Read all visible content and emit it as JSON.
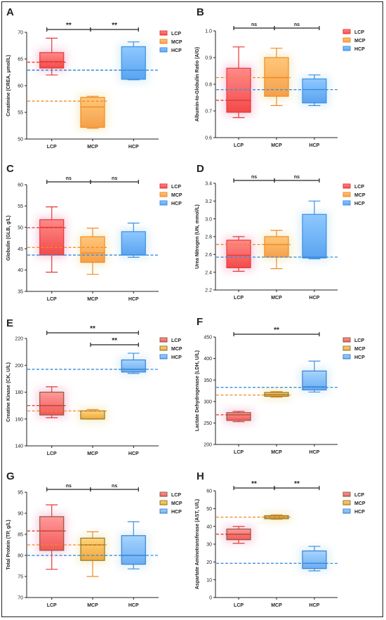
{
  "colors": {
    "LCP_top": "#ff8a8a",
    "LCP_bot": "#f24a4a",
    "LCP_line": "#e53935",
    "LCP_glow": "#f7c8dc",
    "MCP_top": "#ffc77a",
    "MCP_bot": "#f5a04a",
    "MCP_line": "#f08a24",
    "MCP_glow": "#f5ecc6",
    "HCP_top": "#8ec8ff",
    "HCP_bot": "#5aa4f0",
    "HCP_line": "#3d8fe0",
    "HCP_glow": "#d8ecf6",
    "ink": "#222222"
  },
  "categories": [
    "LCP",
    "MCP",
    "HCP"
  ],
  "legend": [
    "LCP",
    "MCP",
    "HCP"
  ],
  "chart_data": [
    {
      "panel": "A",
      "type": "box",
      "ylabel": "Creatinine (CREA, μmol/L)",
      "ylim": [
        50,
        70
      ],
      "yticks": [
        50,
        55,
        60,
        65,
        70
      ],
      "tick_labels": [
        "50",
        "55",
        "60",
        "65",
        "70"
      ],
      "boxes": [
        {
          "group": "LCP",
          "min": 62.0,
          "q1": 63.3,
          "median": 64.5,
          "q3": 66.2,
          "max": 68.9
        },
        {
          "group": "MCP",
          "min": 52.0,
          "q1": 52.2,
          "median": 56.0,
          "q3": 57.8,
          "max": 58.0
        },
        {
          "group": "HCP",
          "min": 61.1,
          "q1": 61.2,
          "median": 62.9,
          "q3": 67.3,
          "max": 68.2
        }
      ],
      "means": [
        64.4,
        57.1,
        62.9
      ],
      "comparisons": [
        {
          "from": 0,
          "to": 1,
          "label": "**"
        },
        {
          "from": 1,
          "to": 2,
          "label": "**"
        }
      ]
    },
    {
      "panel": "B",
      "type": "box",
      "ylabel": "Albumin-to-Globulin Ratio (A/G)",
      "ylim": [
        0.6,
        1.0
      ],
      "yticks": [
        0.6,
        0.7,
        0.8,
        0.9,
        1.0
      ],
      "tick_labels": [
        "0.6",
        "0.7",
        "0.8",
        "0.9",
        "1.0"
      ],
      "boxes": [
        {
          "group": "LCP",
          "min": 0.675,
          "q1": 0.695,
          "median": 0.74,
          "q3": 0.86,
          "max": 0.94
        },
        {
          "group": "MCP",
          "min": 0.72,
          "q1": 0.755,
          "median": 0.825,
          "q3": 0.9,
          "max": 0.935
        },
        {
          "group": "HCP",
          "min": 0.72,
          "q1": 0.73,
          "median": 0.78,
          "q3": 0.82,
          "max": 0.835
        }
      ],
      "means": [
        0.74,
        0.825,
        0.78
      ],
      "comparisons": [
        {
          "from": 0,
          "to": 1,
          "label": "ns"
        },
        {
          "from": 1,
          "to": 2,
          "label": "ns"
        }
      ]
    },
    {
      "panel": "C",
      "type": "box",
      "ylabel": "Globulin (GLB, g/L)",
      "ylim": [
        35,
        60
      ],
      "yticks": [
        35,
        40,
        45,
        50,
        55,
        60
      ],
      "tick_labels": [
        "35",
        "40",
        "45",
        "50",
        "55",
        "60"
      ],
      "boxes": [
        {
          "group": "LCP",
          "min": 39.5,
          "q1": 43.5,
          "median": 50.0,
          "q3": 51.8,
          "max": 54.8
        },
        {
          "group": "MCP",
          "min": 39.0,
          "q1": 41.8,
          "median": 44.0,
          "q3": 47.8,
          "max": 49.8
        },
        {
          "group": "HCP",
          "min": 43.0,
          "q1": 43.5,
          "median": 43.5,
          "q3": 49.0,
          "max": 51.0
        }
      ],
      "means": [
        49.9,
        45.3,
        43.5
      ],
      "comparisons": [
        {
          "from": 0,
          "to": 1,
          "label": "ns"
        },
        {
          "from": 1,
          "to": 2,
          "label": "ns"
        }
      ]
    },
    {
      "panel": "D",
      "type": "box",
      "ylabel": "Urea Nitrogen (UN, mmol/L)",
      "ylim": [
        2.2,
        3.4
      ],
      "yticks": [
        2.2,
        2.4,
        2.6,
        2.8,
        3.0,
        3.2,
        3.4
      ],
      "tick_labels": [
        "2.2",
        "2.4",
        "2.6",
        "2.8",
        "3.0",
        "3.2",
        "3.4"
      ],
      "boxes": [
        {
          "group": "LCP",
          "min": 2.41,
          "q1": 2.45,
          "median": 2.59,
          "q3": 2.76,
          "max": 2.8
        },
        {
          "group": "MCP",
          "min": 2.44,
          "q1": 2.57,
          "median": 2.71,
          "q3": 2.8,
          "max": 2.87
        },
        {
          "group": "HCP",
          "min": 2.55,
          "q1": 2.56,
          "median": 2.57,
          "q3": 3.05,
          "max": 3.2
        }
      ],
      "means": [
        2.71,
        2.71,
        2.57
      ],
      "comparisons": [
        {
          "from": 0,
          "to": 1,
          "label": "ns"
        },
        {
          "from": 1,
          "to": 2,
          "label": "ns"
        }
      ]
    },
    {
      "panel": "E",
      "type": "box",
      "ylabel": "Creatine Kinase (CK, U/L)",
      "ylim": [
        140,
        220
      ],
      "yticks": [
        140,
        160,
        180,
        200,
        220
      ],
      "tick_labels": [
        "140",
        "160",
        "180",
        "200",
        "220"
      ],
      "boxes": [
        {
          "group": "LCP",
          "min": 161,
          "q1": 163,
          "median": 170,
          "q3": 180,
          "max": 184
        },
        {
          "group": "MCP",
          "min": 160,
          "q1": 160,
          "median": 166,
          "q3": 166,
          "max": 167
        },
        {
          "group": "HCP",
          "min": 194,
          "q1": 195,
          "median": 197,
          "q3": 204,
          "max": 209
        }
      ],
      "means": [
        170,
        166,
        197
      ],
      "comparisons": [
        {
          "from": 0,
          "to": 2,
          "label": "**"
        },
        {
          "from": 1,
          "to": 2,
          "label": "**"
        }
      ]
    },
    {
      "panel": "F",
      "type": "box",
      "ylabel": "Lactate Dehydrogenase (LDH, U/L)",
      "ylim": [
        200,
        450
      ],
      "yticks": [
        200,
        250,
        300,
        350,
        400,
        450
      ],
      "tick_labels": [
        "200",
        "250",
        "300",
        "350",
        "400",
        "450"
      ],
      "boxes": [
        {
          "group": "LCP",
          "min": 253,
          "q1": 256,
          "median": 269,
          "q3": 274,
          "max": 277
        },
        {
          "group": "MCP",
          "min": 310,
          "q1": 312,
          "median": 316,
          "q3": 321,
          "max": 323
        },
        {
          "group": "HCP",
          "min": 322,
          "q1": 327,
          "median": 334,
          "q3": 371,
          "max": 394
        }
      ],
      "means": [
        269,
        315,
        333
      ],
      "comparisons": [
        {
          "from": 0,
          "to": 2,
          "label": "**"
        }
      ]
    },
    {
      "panel": "G",
      "type": "box",
      "ylabel": "Total Protein (TP, g/L)",
      "ylim": [
        70,
        95
      ],
      "yticks": [
        70,
        75,
        80,
        85,
        90,
        95
      ],
      "tick_labels": [
        "70",
        "75",
        "80",
        "85",
        "90",
        "95"
      ],
      "boxes": [
        {
          "group": "LCP",
          "min": 76.7,
          "q1": 81.2,
          "median": 85.8,
          "q3": 89.2,
          "max": 92.0
        },
        {
          "group": "MCP",
          "min": 75.0,
          "q1": 78.8,
          "median": 82.5,
          "q3": 84.1,
          "max": 85.6
        },
        {
          "group": "HCP",
          "min": 76.8,
          "q1": 77.9,
          "median": 80.0,
          "q3": 84.7,
          "max": 88.0
        }
      ],
      "means": [
        85.8,
        82.5,
        80.0
      ],
      "comparisons": [
        {
          "from": 0,
          "to": 1,
          "label": "ns"
        },
        {
          "from": 1,
          "to": 2,
          "label": "ns"
        }
      ]
    },
    {
      "panel": "H",
      "type": "box",
      "ylabel": "Aspartate Aminotransferase (AST, U/L)",
      "ylim": [
        0,
        60
      ],
      "yticks": [
        0,
        10,
        20,
        30,
        40,
        50,
        60
      ],
      "tick_labels": [
        "0",
        "10",
        "20",
        "30",
        "40",
        "50",
        "60"
      ],
      "boxes": [
        {
          "group": "LCP",
          "min": 30.5,
          "q1": 32.5,
          "median": 35.5,
          "q3": 38.5,
          "max": 40.0
        },
        {
          "group": "MCP",
          "min": 44.0,
          "q1": 44.3,
          "median": 45.2,
          "q3": 46.0,
          "max": 46.5
        },
        {
          "group": "HCP",
          "min": 15.0,
          "q1": 16.3,
          "median": 19.2,
          "q3": 26.2,
          "max": 28.8
        }
      ],
      "means": [
        35.6,
        45.2,
        19.2
      ],
      "comparisons": [
        {
          "from": 0,
          "to": 1,
          "label": "**"
        },
        {
          "from": 1,
          "to": 2,
          "label": "**"
        }
      ]
    }
  ]
}
